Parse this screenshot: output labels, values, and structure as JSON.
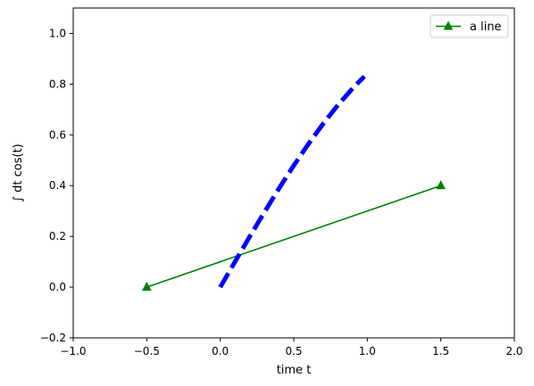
{
  "chart_data": {
    "type": "line",
    "title": "",
    "xlabel": "time t",
    "ylabel": "∫ dt cos(t)",
    "xlim": [
      -1.0,
      2.0
    ],
    "ylim": [
      -0.2,
      1.1
    ],
    "xticks": [
      -1.0,
      -0.5,
      0.0,
      0.5,
      1.0,
      1.5,
      2.0
    ],
    "xtick_labels": [
      "−1.0",
      "−0.5",
      "0.0",
      "0.5",
      "1.0",
      "1.5",
      "2.0"
    ],
    "yticks": [
      -0.2,
      0.0,
      0.2,
      0.4,
      0.6,
      0.8,
      1.0
    ],
    "ytick_labels": [
      "−0.2",
      "0.0",
      "0.2",
      "0.4",
      "0.6",
      "0.8",
      "1.0"
    ],
    "grid": false,
    "legend": {
      "placement": "top-right",
      "entries": [
        "a line"
      ]
    },
    "series": [
      {
        "name": "a line",
        "style": "solid",
        "marker": "triangle",
        "color": "#008000",
        "x": [
          -0.5,
          1.5
        ],
        "y": [
          0.0,
          0.4
        ]
      },
      {
        "style": "dashed",
        "marker": "none",
        "color": "#0000ff",
        "x": [
          0.0,
          0.1,
          0.2,
          0.3,
          0.4,
          0.5,
          0.6,
          0.7,
          0.8,
          0.9,
          0.98
        ],
        "y": [
          0.0,
          0.0998,
          0.1987,
          0.2955,
          0.3894,
          0.4794,
          0.5646,
          0.6442,
          0.7174,
          0.7833,
          0.8305
        ]
      }
    ]
  }
}
